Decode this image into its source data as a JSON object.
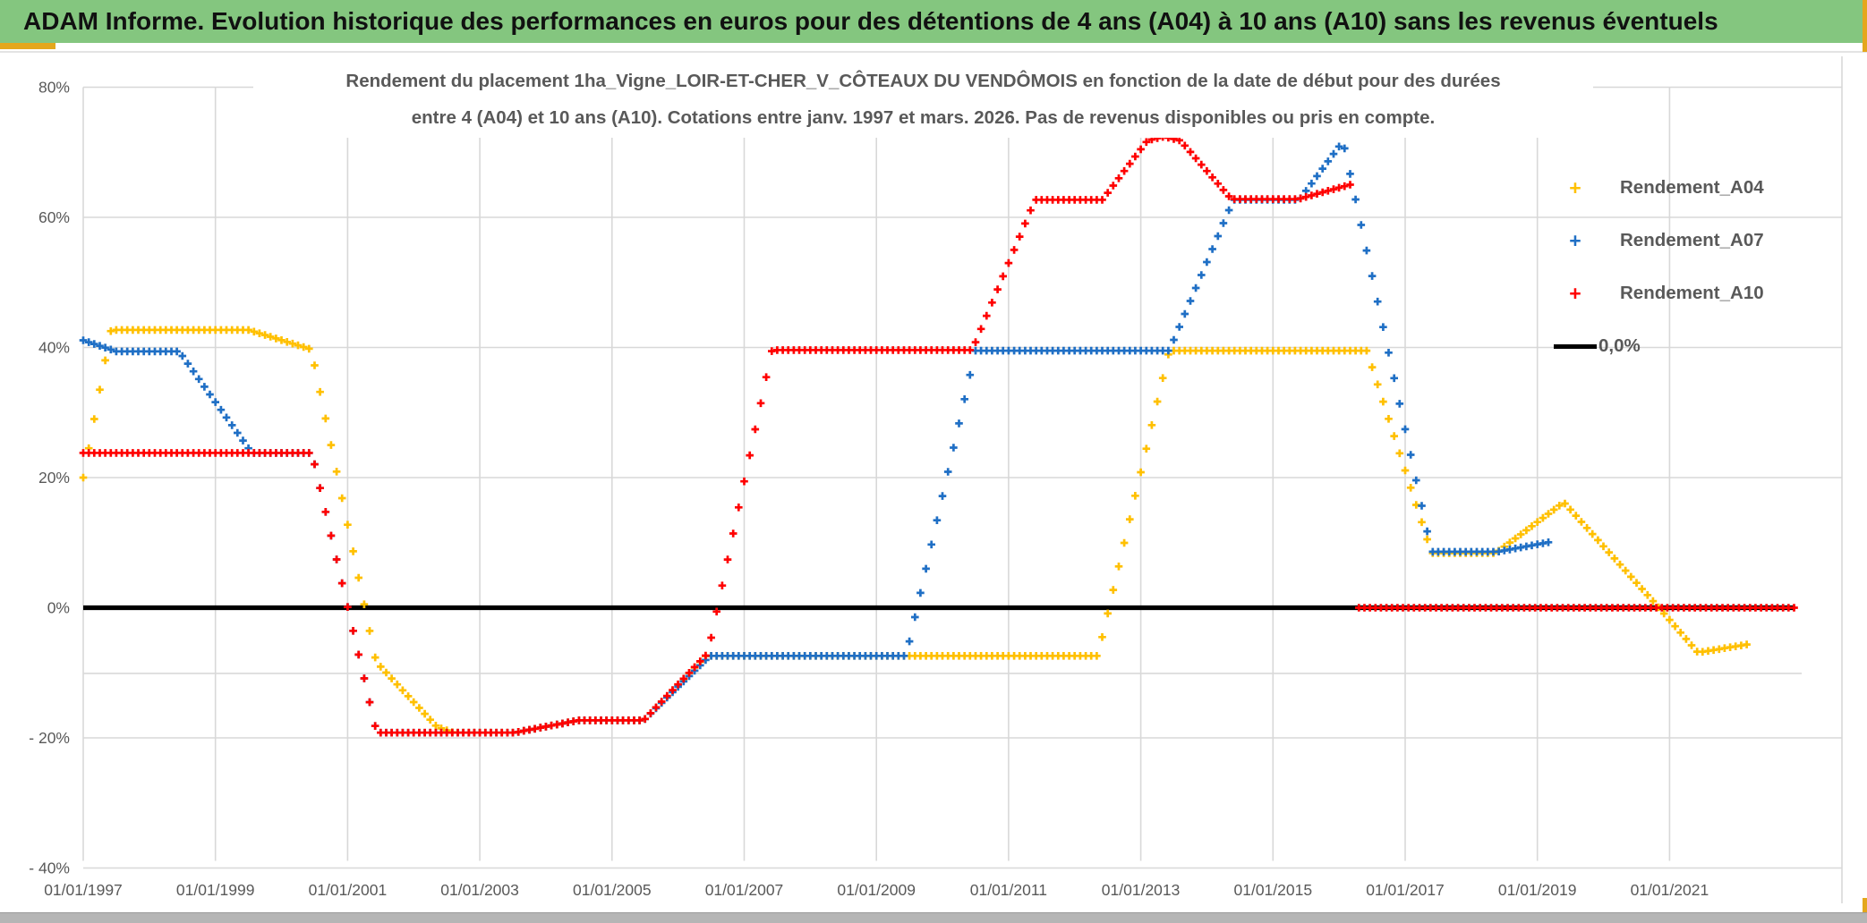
{
  "header": {
    "title": "ADAM Informe. Evolution historique des performances en euros pour des détentions de 4 ans (A04) à 10 ans (A10) sans les revenus éventuels"
  },
  "chart": {
    "title_line1": "Rendement du placement 1ha_Vigne_LOIR-ET-CHER_V_CÔTEAUX DU VENDÔMOIS en fonction de la date de début pour des durées",
    "title_line2": "entre 4 (A04) et 10 ans (A10). Cotations entre janv. 1997 et mars. 2026. Pas de revenus disponibles ou pris en compte."
  },
  "legend": {
    "items": [
      {
        "label": "Rendement_A04",
        "marker": "plus",
        "color": "#FFC000"
      },
      {
        "label": "Rendement_A07",
        "marker": "plus",
        "color": "#1F6FC5"
      },
      {
        "label": "Rendement_A10",
        "marker": "plus",
        "color": "#FF0000"
      },
      {
        "label": "0,0%",
        "marker": "line",
        "color": "#000000"
      }
    ]
  },
  "chart_data": {
    "type": "scatter",
    "marker_style": "plus",
    "point_frequency": "monthly",
    "title": "Rendement du placement 1ha_Vigne_LOIR-ET-CHER_V_CÔTEAUX DU VENDÔMOIS en fonction de la date de début pour des durées entre 4 (A04) et 10 ans (A10). Cotations entre janv. 1997 et mars. 2026. Pas de revenus disponibles ou pris en compte.",
    "x_axis": {
      "tick_labels": [
        "01/01/1997",
        "01/01/1999",
        "01/01/2001",
        "01/01/2003",
        "01/01/2005",
        "01/01/2007",
        "01/01/2009",
        "01/01/2011",
        "01/01/2013",
        "01/01/2015",
        "01/01/2017",
        "01/01/2019",
        "01/01/2021"
      ],
      "tick_years": [
        1997,
        1999,
        2001,
        2003,
        2005,
        2007,
        2009,
        2011,
        2013,
        2015,
        2017,
        2019,
        2021
      ],
      "range_years": [
        1997,
        2023.4
      ],
      "grid": true
    },
    "y_axis": {
      "tick_labels": [
        "80%",
        "60%",
        "40%",
        "20%",
        "0%",
        "- 20%",
        "- 40%"
      ],
      "tick_values": [
        80,
        60,
        40,
        20,
        0,
        -20,
        -40
      ],
      "range": [
        -40,
        80
      ],
      "grid": true
    },
    "series": [
      {
        "name": "Rendement_A04",
        "color": "#FFC000",
        "unit": "percent",
        "segments": [
          [
            [
              1997.0,
              20.0
            ],
            [
              1997.42,
              42.7
            ],
            [
              1999.5,
              42.7
            ],
            [
              2000.45,
              39.7
            ],
            [
              2001.43,
              -8.3
            ],
            [
              2002.35,
              -18.3
            ],
            [
              2002.6,
              -19.2
            ],
            [
              2003.52,
              -19.2
            ],
            [
              2004.5,
              -17.3
            ],
            [
              2005.48,
              -17.3
            ],
            [
              2006.42,
              -7.4
            ],
            [
              2012.35,
              -7.4
            ],
            [
              2013.43,
              39.5
            ],
            [
              2016.42,
              39.5
            ],
            [
              2017.4,
              8.4
            ],
            [
              2018.37,
              8.4
            ],
            [
              2019.4,
              16.2
            ],
            [
              2020.84,
              0.0
            ],
            [
              2021.43,
              -6.9
            ],
            [
              2022.2,
              -5.6
            ]
          ]
        ]
      },
      {
        "name": "Rendement_A07",
        "color": "#1F6FC5",
        "unit": "percent",
        "segments": [
          [
            [
              1997.0,
              41.1
            ],
            [
              1997.5,
              39.4
            ],
            [
              1998.45,
              39.4
            ],
            [
              1999.55,
              23.8
            ],
            [
              2000.46,
              23.8
            ],
            [
              2001.44,
              -19.2
            ],
            [
              2003.52,
              -19.2
            ],
            [
              2004.5,
              -17.3
            ],
            [
              2005.48,
              -17.3
            ],
            [
              2006.48,
              -7.4
            ],
            [
              2009.45,
              -7.4
            ],
            [
              2010.5,
              39.5
            ],
            [
              2013.43,
              39.5
            ],
            [
              2014.4,
              62.7
            ],
            [
              2015.4,
              62.7
            ],
            [
              2016.06,
              71.7
            ],
            [
              2017.4,
              8.6
            ],
            [
              2018.4,
              8.6
            ],
            [
              2019.24,
              10.2
            ]
          ]
        ]
      },
      {
        "name": "Rendement_A10",
        "color": "#FF0000",
        "unit": "percent",
        "segments": [
          [
            [
              1997.0,
              23.8
            ],
            [
              2000.46,
              23.8
            ],
            [
              2001.44,
              -19.2
            ],
            [
              2003.52,
              -19.2
            ],
            [
              2004.5,
              -17.3
            ],
            [
              2005.48,
              -17.3
            ],
            [
              2006.45,
              -7.0
            ],
            [
              2007.42,
              39.6
            ],
            [
              2010.45,
              39.6
            ],
            [
              2011.4,
              62.7
            ],
            [
              2012.42,
              62.7
            ],
            [
              2013.1,
              71.8
            ],
            [
              2013.35,
              72.4
            ],
            [
              2013.6,
              71.8
            ],
            [
              2014.37,
              62.8
            ],
            [
              2015.38,
              62.8
            ],
            [
              2016.23,
              65.2
            ]
          ],
          [
            [
              2016.3,
              0.0
            ],
            [
              2022.95,
              0.0
            ]
          ]
        ]
      }
    ],
    "reference_lines": [
      {
        "name": "0,0%",
        "value": 0,
        "color": "#000000",
        "from_year": 1997.0,
        "to_year": 2022.9
      },
      {
        "name": "minor-gray-line",
        "value": -10.1,
        "color": "#D9D9D9",
        "from_year": 1997.0,
        "to_year": 2023.0
      }
    ],
    "legend_position": "right",
    "colors": {
      "grid": "#D8D8D8",
      "axis_text": "#595959",
      "header_green": "#84C67F",
      "accent_amber": "#E4A71D"
    }
  }
}
